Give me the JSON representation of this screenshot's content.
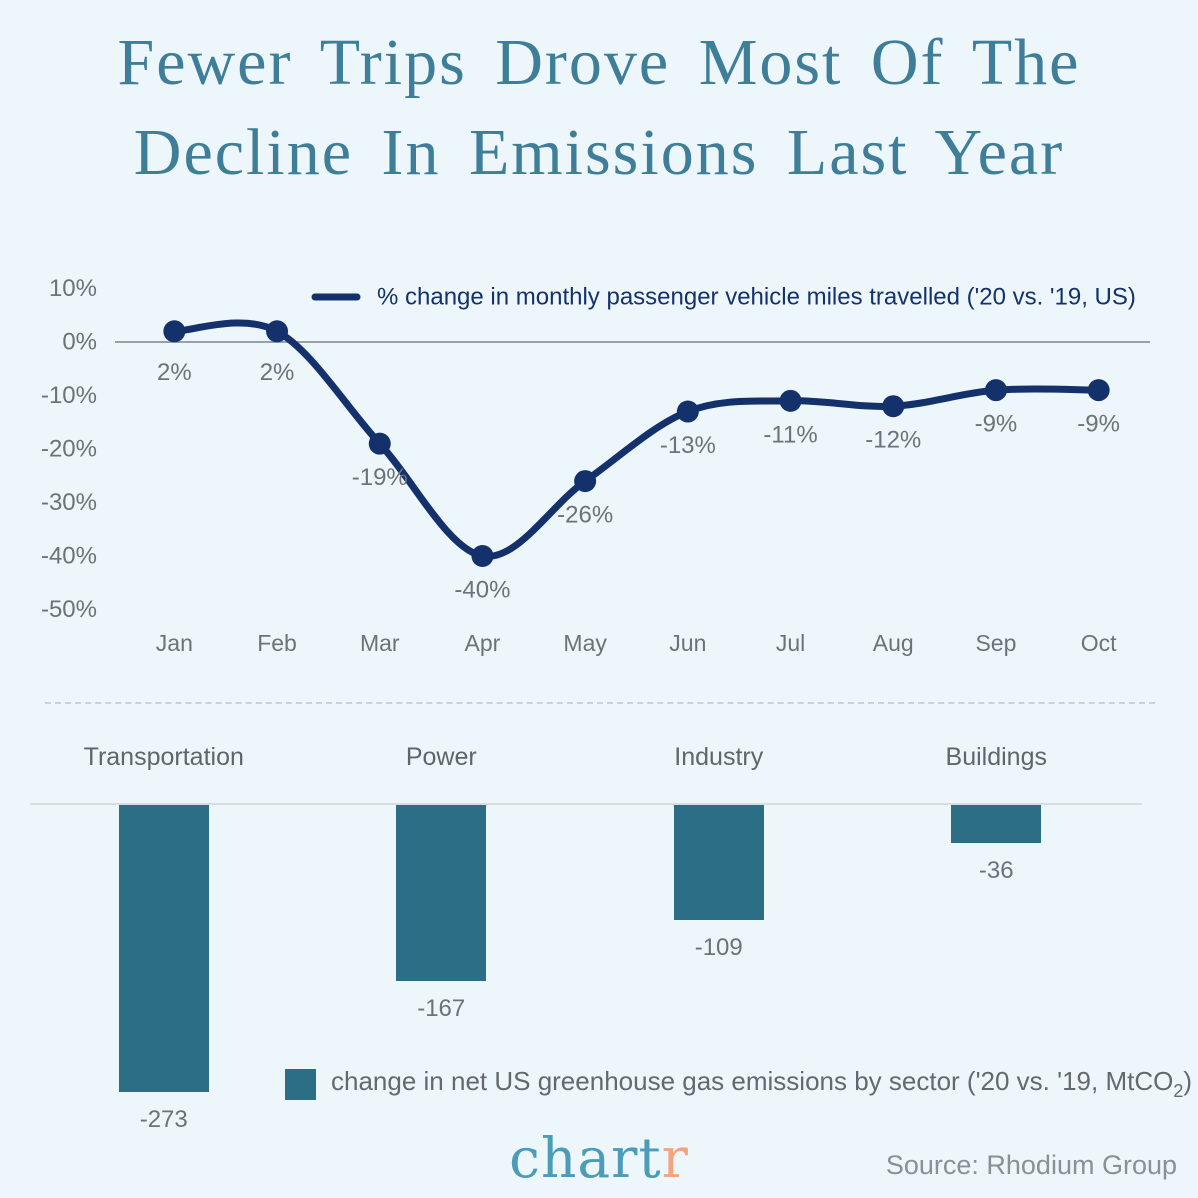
{
  "title": {
    "line1": "Fewer Trips Drove Most Of The",
    "line2": "Decline In Emissions Last Year"
  },
  "chart_data": [
    {
      "type": "line",
      "x": [
        "Jan",
        "Feb",
        "Mar",
        "Apr",
        "May",
        "Jun",
        "Jul",
        "Aug",
        "Sep",
        "Oct"
      ],
      "series": [
        {
          "name": "% change in monthly passenger vehicle miles travelled ('20 vs. '19, US)",
          "values": [
            2,
            2,
            -19,
            -40,
            -26,
            -13,
            -11,
            -12,
            -9,
            -9
          ]
        }
      ],
      "data_labels": [
        "2%",
        "2%",
        "-19%",
        "-40%",
        "-26%",
        "-13%",
        "-11%",
        "-12%",
        "-9%",
        "-9%"
      ],
      "ylim": [
        -50,
        10
      ],
      "yticks": [
        {
          "value": 10,
          "label": "10%"
        },
        {
          "value": 0,
          "label": "0%"
        },
        {
          "value": -10,
          "label": "-10%"
        },
        {
          "value": -20,
          "label": "-20%"
        },
        {
          "value": -30,
          "label": "-30%"
        },
        {
          "value": -40,
          "label": "-40%"
        },
        {
          "value": -50,
          "label": "-50%"
        }
      ],
      "grid": "zero-line-only",
      "legend_position": "top-center"
    },
    {
      "type": "bar",
      "categories": [
        "Transportation",
        "Power",
        "Industry",
        "Buildings"
      ],
      "values": [
        -273,
        -167,
        -109,
        -36
      ],
      "data_labels": [
        "-273",
        "-167",
        "-109",
        "-36"
      ],
      "legend": {
        "prefix": "change in net US greenhouse gas emissions by sector ('20 vs. '19, MtCO",
        "subscript": "2",
        "suffix": ")"
      },
      "grid": "zero-baseline-only"
    }
  ],
  "footer": {
    "logo_part1": "chart",
    "logo_part2": "r",
    "source": "Source: Rhodium Group"
  },
  "colors": {
    "background": "#edf6fa",
    "title": "#3e7e99",
    "line": "#14316b",
    "bar": "#2b6e86",
    "label_gray": "#6d7277",
    "zero_line": "#9aa0a3",
    "bar_baseline": "#d9dde0",
    "dashed_divider": "#c9d2d6",
    "logo_teal": "#4a9cb8",
    "logo_orange": "#f2a67e",
    "source_gray": "#8a9094"
  }
}
